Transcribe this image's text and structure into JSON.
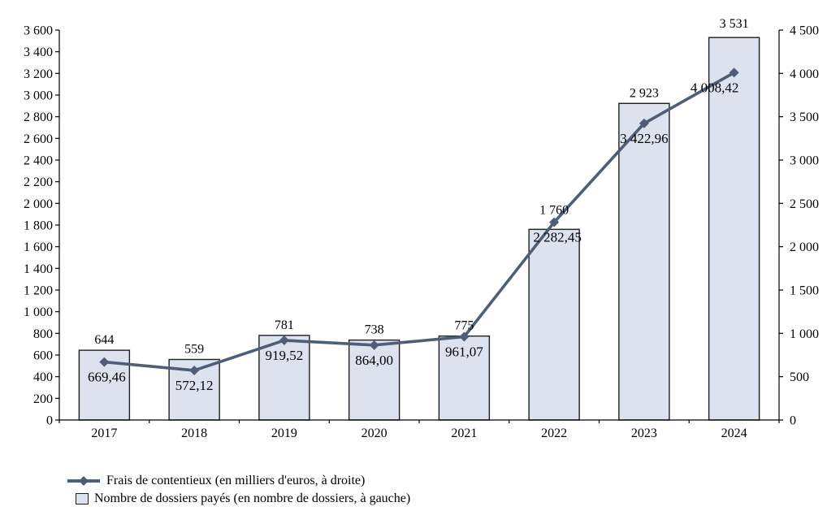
{
  "chart_data": {
    "type": "combo-bar-line",
    "title": "",
    "categories": [
      "2017",
      "2018",
      "2019",
      "2020",
      "2021",
      "2022",
      "2023",
      "2024"
    ],
    "series": [
      {
        "name": "Nombre de dossiers payés (en nombre de dossiers, à gauche)",
        "type": "bar",
        "axis": "left",
        "values": [
          644,
          559,
          781,
          738,
          775,
          1760,
          2923,
          3531
        ],
        "labels": [
          "644",
          "559",
          "781",
          "738",
          "775",
          "1 760",
          "2 923",
          "3 531"
        ],
        "label_dy": [
          0,
          0,
          0,
          0,
          0,
          -11,
          0,
          -4
        ]
      },
      {
        "name": "Frais de contentieux (en milliers d'euros, à droite)",
        "type": "line",
        "axis": "right",
        "values": [
          669.46,
          572.12,
          919.52,
          864.0,
          961.07,
          2282.45,
          3422.96,
          4008.42
        ],
        "labels": [
          "669,46",
          "572,12",
          "919,52",
          "864,00",
          "961,07",
          "2 282,45",
          "3 422,96",
          "4 008,42"
        ],
        "label_dx": [
          3,
          0,
          0,
          0,
          0,
          4,
          0,
          -24
        ],
        "label_dy": [
          0,
          0,
          0,
          0,
          0,
          0,
          0,
          0
        ]
      }
    ],
    "left_axis": {
      "min": 0,
      "max": 3600,
      "step": 200,
      "tick_labels": [
        "0",
        "200",
        "400",
        "600",
        "800",
        "1 000",
        "1 200",
        "1 400",
        "1 600",
        "1 800",
        "2 000",
        "2 200",
        "2 400",
        "2 600",
        "2 800",
        "3 000",
        "3 200",
        "3 400",
        "3 600"
      ]
    },
    "right_axis": {
      "min": 0,
      "max": 4500,
      "step": 500,
      "tick_labels": [
        "0",
        "500",
        "1 000",
        "1 500",
        "2 000",
        "2 500",
        "3 000",
        "3 500",
        "4 000",
        "4 500"
      ]
    },
    "grid": false,
    "legend_position": "bottom-left",
    "colors": {
      "line": "#4d5e76",
      "bar_fill": "#dce2ee",
      "bar_border": "#1f1f1f",
      "axis": "#000000",
      "text": "#000000"
    }
  },
  "legend": {
    "items": [
      {
        "label": "Frais de contentieux (en milliers d'euros, à droite)",
        "sample": "line-with-diamond-icon"
      },
      {
        "label": "Nombre de dossiers payés (en nombre de dossiers, à gauche)",
        "sample": "bar-swatch-icon"
      }
    ]
  }
}
